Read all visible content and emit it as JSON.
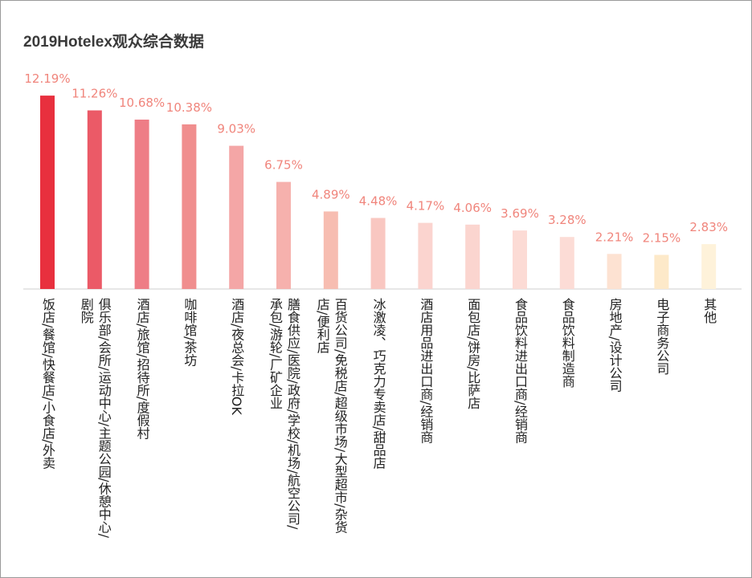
{
  "chart_data": {
    "type": "bar",
    "title": "2019Hotelex观众综合数据",
    "categories": [
      "饭店/餐馆/快餐店/小食店/外卖",
      "俱乐部/会所/运动中心/主题公园/休憩中心/剧院",
      "酒店/旅馆/招待所/度假村",
      "咖啡馆/茶坊",
      "酒店/夜总会/卡拉OK",
      "膳食供应/医院/政府/学校/机场/航空公司/承包/游轮/厂矿企业",
      "百货公司/免税店/超级市场/大型超市/杂货店/便利店",
      "冰激凌、巧克力专卖店/甜品店",
      "酒店用品进出口商/经销商",
      "面包店/饼房/比萨店",
      "食品饮料进出口商/经销商",
      "食品饮料制造商",
      "房地产/设计公司",
      "电子商务公司",
      "其他"
    ],
    "category_lines": [
      [
        "饭店/餐馆/快餐店/小食店/外卖"
      ],
      [
        "俱乐部/会所/运动中心/主题公园/休憩中心/",
        "剧院"
      ],
      [
        "酒店/旅馆/招待所/度假村"
      ],
      [
        "咖啡馆/茶坊"
      ],
      [
        "酒店/夜总会/卡拉OK"
      ],
      [
        "膳食供应/医院/政府/学校/机场/航空公司/",
        "承包/游轮/厂矿企业"
      ],
      [
        "百货公司/免税店/超级市场/大型超市/杂货",
        "店/便利店"
      ],
      [
        "冰激凌、巧克力专卖店/甜品店"
      ],
      [
        "酒店用品进出口商/经销商"
      ],
      [
        "面包店/饼房/比萨店"
      ],
      [
        "食品饮料进出口商/经销商"
      ],
      [
        "食品饮料制造商"
      ],
      [
        "房地产/设计公司"
      ],
      [
        "电子商务公司"
      ],
      [
        "其他"
      ]
    ],
    "values": [
      12.19,
      11.26,
      10.68,
      10.38,
      9.03,
      6.75,
      4.89,
      4.48,
      4.17,
      4.06,
      3.69,
      3.28,
      2.21,
      2.15,
      2.83
    ],
    "value_labels": [
      "12.19%",
      "11.26%",
      "10.68%",
      "10.38%",
      "9.03%",
      "6.75%",
      "4.89%",
      "4.48%",
      "4.17%",
      "4.06%",
      "3.69%",
      "3.28%",
      "2.21%",
      "2.15%",
      "2.83%"
    ],
    "colors": [
      "#e8303e",
      "#eb5a67",
      "#ee7d86",
      "#f08e8e",
      "#f4a6a6",
      "#f6b1ad",
      "#f7bdb1",
      "#f9c7c1",
      "#fbd4cf",
      "#fbd5cf",
      "#fcdbd5",
      "#fcdcd6",
      "#fde2d2",
      "#fde9c9",
      "#fef2da"
    ],
    "label_color": "#f0857c",
    "ylim": [
      0,
      12.5
    ],
    "grid": false,
    "legend": "none"
  }
}
